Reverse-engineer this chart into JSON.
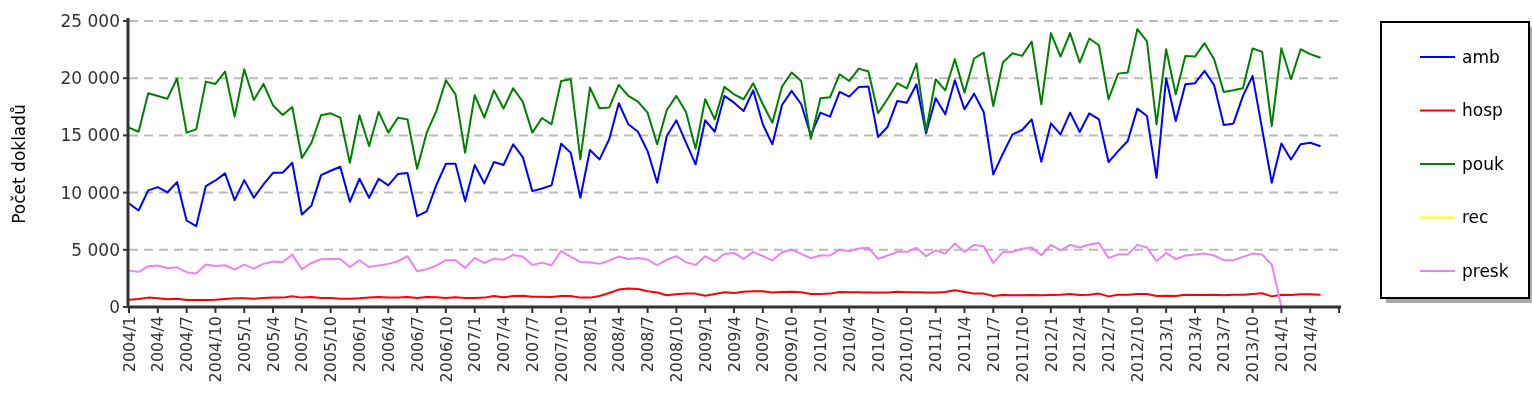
{
  "chart_data": {
    "type": "line",
    "ylabel": "Počet dokladů",
    "categories": [
      "2004/1",
      null,
      null,
      "2004/4",
      null,
      null,
      "2004/7",
      null,
      null,
      "2004/10",
      null,
      null,
      "2005/1",
      null,
      null,
      "2005/4",
      null,
      null,
      "2005/7",
      null,
      null,
      "2005/10",
      null,
      null,
      "2006/1",
      null,
      null,
      "2006/4",
      null,
      null,
      "2006/7",
      null,
      null,
      "2006/10",
      null,
      null,
      "2007/1",
      null,
      null,
      "2007/4",
      null,
      null,
      "2007/7",
      null,
      null,
      "2007/10",
      null,
      null,
      "2008/1",
      null,
      null,
      "2008/4",
      null,
      null,
      "2008/7",
      null,
      null,
      "2008/10",
      null,
      null,
      "2009/1",
      null,
      null,
      "2009/4",
      null,
      null,
      "2009/7",
      null,
      null,
      "2009/10",
      null,
      null,
      "2010/1",
      null,
      null,
      "2010/4",
      null,
      null,
      "2010/7",
      null,
      null,
      "2010/10",
      null,
      null,
      "2011/1",
      null,
      null,
      "2011/4",
      null,
      null,
      "2011/7",
      null,
      null,
      "2011/10",
      null,
      null,
      "2012/1",
      null,
      null,
      "2012/4",
      null,
      null,
      "2012/7",
      null,
      null,
      "2012/10",
      null,
      null,
      "2013/1",
      null,
      null,
      "2013/4",
      null,
      null,
      "2013/7",
      null,
      null,
      "2013/10",
      null,
      null,
      "2014/1",
      null,
      null,
      "2014/4",
      null,
      null,
      null
    ],
    "series": [
      {
        "name": "amb",
        "color": "#0000ff",
        "values": [
          9050,
          8440,
          10190,
          10480,
          10010,
          10920,
          7560,
          7060,
          10570,
          11060,
          11680,
          9340,
          11090,
          9550,
          10710,
          11730,
          11730,
          12610,
          8090,
          8870,
          11530,
          11910,
          12260,
          9200,
          11210,
          9550,
          11210,
          10630,
          11620,
          11710,
          7940,
          8350,
          10650,
          12520,
          12520,
          9250,
          12410,
          10800,
          12670,
          12410,
          14220,
          13110,
          10130,
          10360,
          10630,
          14270,
          13490,
          9550,
          13720,
          12900,
          14650,
          17810,
          15970,
          15320,
          13630,
          10860,
          14950,
          16320,
          14360,
          12460,
          16320,
          15320,
          18450,
          17860,
          17130,
          18940,
          15970,
          14220,
          17660,
          18890,
          17720,
          15000,
          16990,
          16640,
          18800,
          18390,
          19240,
          19270,
          14860,
          15760,
          18010,
          17860,
          19470,
          15180,
          18240,
          16840,
          19820,
          17280,
          18650,
          17050,
          11590,
          13400,
          15090,
          15470,
          16400,
          12700,
          16050,
          15090,
          16990,
          15300,
          16930,
          16400,
          12670,
          13630,
          14510,
          17340,
          16700,
          11300,
          20000,
          16260,
          19470,
          19560,
          20640,
          19380,
          15910,
          16030,
          18450,
          20200,
          15530,
          10860,
          14300,
          12900,
          14220,
          14360,
          14070,
          null,
          null
        ]
      },
      {
        "name": "hosp",
        "color": "#ff0000",
        "values": [
          640,
          700,
          820,
          760,
          670,
          730,
          610,
          610,
          620,
          630,
          700,
          760,
          760,
          730,
          790,
          820,
          820,
          930,
          820,
          880,
          790,
          790,
          730,
          730,
          760,
          820,
          880,
          820,
          820,
          880,
          790,
          880,
          850,
          790,
          850,
          790,
          790,
          820,
          960,
          850,
          960,
          990,
          900,
          900,
          880,
          960,
          960,
          820,
          820,
          960,
          1230,
          1520,
          1610,
          1580,
          1370,
          1260,
          1020,
          1110,
          1170,
          1170,
          990,
          1140,
          1280,
          1230,
          1340,
          1370,
          1370,
          1260,
          1310,
          1340,
          1280,
          1140,
          1140,
          1170,
          1310,
          1280,
          1280,
          1260,
          1260,
          1260,
          1340,
          1280,
          1280,
          1260,
          1260,
          1310,
          1460,
          1310,
          1170,
          1170,
          960,
          1050,
          1020,
          1020,
          1050,
          1020,
          1050,
          1080,
          1140,
          1050,
          1080,
          1170,
          930,
          1080,
          1080,
          1140,
          1140,
          960,
          990,
          960,
          1080,
          1050,
          1050,
          1080,
          1020,
          1080,
          1080,
          1140,
          1200,
          930,
          1080,
          1050,
          1110,
          1110,
          1080,
          null,
          null
        ]
      },
      {
        "name": "pouk",
        "color": "#008000",
        "values": [
          15680,
          15320,
          18680,
          18450,
          18210,
          19970,
          15240,
          15530,
          19700,
          19500,
          20580,
          16640,
          20780,
          18100,
          19500,
          17630,
          16780,
          17480,
          13020,
          14360,
          16760,
          16930,
          16550,
          12610,
          16760,
          14070,
          17050,
          15240,
          16550,
          16400,
          12080,
          15240,
          17130,
          19820,
          18590,
          13490,
          18510,
          16550,
          18940,
          17340,
          19120,
          17950,
          15240,
          16520,
          15970,
          19760,
          19910,
          12900,
          19180,
          17370,
          17430,
          19410,
          18450,
          17950,
          16990,
          14220,
          17220,
          18450,
          17050,
          13840,
          18160,
          16400,
          19240,
          18590,
          18160,
          19560,
          17720,
          16110,
          19270,
          20490,
          19760,
          14710,
          18240,
          18330,
          20350,
          19760,
          20840,
          20580,
          16930,
          18210,
          19560,
          19120,
          21280,
          15380,
          19910,
          18940,
          21660,
          18740,
          21720,
          22240,
          17570,
          21370,
          22180,
          21950,
          23210,
          17720,
          23940,
          21890,
          23940,
          21370,
          23470,
          22880,
          18160,
          20400,
          20490,
          24290,
          23210,
          15970,
          22530,
          18590,
          21950,
          21890,
          23060,
          21660,
          18800,
          18940,
          19120,
          22590,
          22300,
          15820,
          22620,
          19910,
          22530,
          22100,
          21810,
          null,
          null
        ]
      },
      {
        "name": "rec",
        "color": "#ffff00",
        "values": [
          null,
          null,
          null,
          null,
          null,
          null,
          null,
          null,
          null,
          null,
          null,
          null,
          null,
          null,
          null,
          null,
          null,
          null,
          null,
          null,
          null,
          null,
          null,
          null,
          null,
          null,
          null,
          null,
          null,
          null,
          null,
          null,
          null,
          null,
          null,
          null,
          null,
          null,
          null,
          null,
          null,
          null,
          null,
          null,
          null,
          null,
          null,
          null,
          null,
          null,
          null,
          null,
          null,
          null,
          null,
          null,
          null,
          null,
          null,
          null,
          null,
          null,
          null,
          null,
          null,
          null,
          null,
          null,
          null,
          null,
          null,
          null,
          null,
          null,
          null,
          null,
          null,
          null,
          null,
          null,
          null,
          null,
          null,
          null,
          null,
          null,
          null,
          null,
          null,
          null,
          null,
          null,
          null,
          null,
          null,
          null,
          null,
          null,
          null,
          null,
          null,
          null,
          null,
          null,
          null,
          null,
          null,
          null,
          null,
          null,
          null,
          null,
          null,
          null,
          null,
          null,
          null,
          null,
          null,
          null,
          null,
          null,
          null,
          null,
          null,
          null,
          null
        ]
      },
      {
        "name": "presk",
        "color": "#ee82ee",
        "values": [
          3180,
          3070,
          3560,
          3620,
          3390,
          3470,
          3040,
          2920,
          3710,
          3590,
          3650,
          3270,
          3710,
          3360,
          3770,
          3970,
          3910,
          4580,
          3300,
          3850,
          4170,
          4200,
          4200,
          3500,
          4090,
          3500,
          3620,
          3770,
          4000,
          4440,
          3120,
          3300,
          3620,
          4090,
          4090,
          3420,
          4290,
          3850,
          4230,
          4120,
          4550,
          4410,
          3680,
          3880,
          3650,
          4900,
          4380,
          3940,
          3910,
          3770,
          4060,
          4410,
          4200,
          4290,
          4150,
          3650,
          4150,
          4440,
          3910,
          3680,
          4440,
          4000,
          4630,
          4730,
          4200,
          4820,
          4440,
          4060,
          4790,
          5020,
          4640,
          4260,
          4500,
          4500,
          5020,
          4900,
          5110,
          5170,
          4200,
          4500,
          4820,
          4820,
          5170,
          4440,
          4960,
          4670,
          5550,
          4820,
          5430,
          5310,
          3850,
          4790,
          4820,
          5090,
          5200,
          4520,
          5430,
          4960,
          5430,
          5200,
          5460,
          5600,
          4290,
          4580,
          4580,
          5430,
          5200,
          4000,
          4730,
          4200,
          4500,
          4580,
          4670,
          4500,
          4090,
          4090,
          4380,
          4670,
          4580,
          3710,
          0,
          null,
          null,
          null,
          null,
          null,
          null
        ]
      }
    ],
    "ylim": [
      0,
      25000
    ],
    "yticks": [
      0,
      {
        "value": 5000,
        "label": "5 000"
      },
      {
        "value": 10000,
        "label": "10 000"
      },
      {
        "value": 15000,
        "label": "15 000"
      },
      {
        "value": 20000,
        "label": "20 000"
      },
      {
        "value": 25000,
        "label": "25 000"
      }
    ],
    "grid": "y",
    "legend": "right",
    "marker": "none",
    "line_style": "solid"
  }
}
